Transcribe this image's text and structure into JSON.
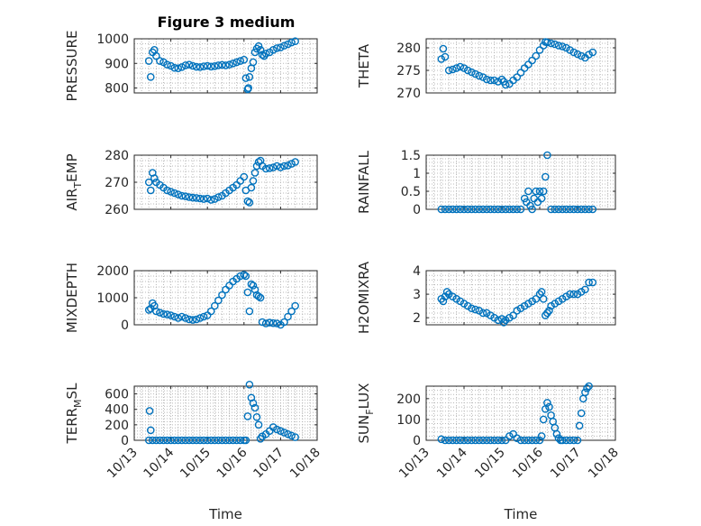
{
  "figure": {
    "title": "Figure 3 medium",
    "marker_color": "#0072BD"
  },
  "chart_data": [
    {
      "type": "scatter",
      "title": "Figure 3 medium",
      "ylabel": "PRESSURE",
      "xlabel": "",
      "xlim": [
        13,
        18
      ],
      "ylim": [
        780,
        1000
      ],
      "yticks": [
        800,
        900,
        1000
      ],
      "xticks": [
        "10/13",
        "10/14",
        "10/15",
        "10/16",
        "10/17",
        "10/18"
      ],
      "show_xticklabels": false,
      "x": [
        13.4,
        13.45,
        13.5,
        13.55,
        13.6,
        13.7,
        13.8,
        13.9,
        14.0,
        14.1,
        14.2,
        14.3,
        14.4,
        14.5,
        14.6,
        14.7,
        14.8,
        14.9,
        15.0,
        15.1,
        15.2,
        15.3,
        15.4,
        15.5,
        15.6,
        15.7,
        15.8,
        15.9,
        16.0,
        16.05,
        16.1,
        16.12,
        16.15,
        16.2,
        16.25,
        16.3,
        16.35,
        16.4,
        16.45,
        16.5,
        16.55,
        16.6,
        16.7,
        16.8,
        16.9,
        17.0,
        17.1,
        17.2,
        17.3,
        17.4
      ],
      "y": [
        910,
        845,
        945,
        955,
        930,
        910,
        905,
        895,
        890,
        882,
        880,
        885,
        892,
        895,
        890,
        886,
        885,
        888,
        890,
        887,
        889,
        892,
        894,
        892,
        895,
        900,
        905,
        910,
        915,
        840,
        795,
        800,
        845,
        880,
        905,
        945,
        960,
        970,
        955,
        935,
        930,
        940,
        945,
        955,
        962,
        965,
        972,
        978,
        985,
        990
      ]
    },
    {
      "type": "scatter",
      "title": "",
      "ylabel": "THETA",
      "xlabel": "",
      "xlim": [
        13,
        18
      ],
      "ylim": [
        270,
        282
      ],
      "yticks": [
        270,
        275,
        280
      ],
      "xticks": [
        "10/13",
        "10/14",
        "10/15",
        "10/16",
        "10/17",
        "10/18"
      ],
      "show_xticklabels": false,
      "x": [
        13.4,
        13.45,
        13.5,
        13.6,
        13.7,
        13.8,
        13.9,
        14.0,
        14.1,
        14.2,
        14.3,
        14.4,
        14.5,
        14.6,
        14.7,
        14.8,
        14.9,
        15.0,
        15.05,
        15.1,
        15.2,
        15.3,
        15.4,
        15.5,
        15.6,
        15.7,
        15.8,
        15.9,
        16.0,
        16.1,
        16.15,
        16.2,
        16.3,
        16.4,
        16.5,
        16.6,
        16.7,
        16.8,
        16.9,
        17.0,
        17.1,
        17.2,
        17.3,
        17.4
      ],
      "y": [
        277.5,
        279.8,
        278,
        275,
        275.2,
        275.5,
        275.8,
        275.5,
        275,
        274.6,
        274.2,
        273.8,
        273.5,
        273,
        272.8,
        272.8,
        272.5,
        273,
        272.5,
        271.8,
        272,
        272.8,
        273.5,
        274.5,
        275.5,
        276.3,
        277.2,
        278.2,
        279.5,
        280.5,
        281.3,
        281.2,
        281,
        280.8,
        280.5,
        280.3,
        280,
        279.5,
        279,
        278.6,
        278.2,
        277.8,
        278.5,
        279
      ]
    },
    {
      "type": "scatter",
      "title": "",
      "ylabel": "AIR_TEMP",
      "ylabel_main": "AIR",
      "ylabel_sub": "T",
      "ylabel_rest": "EMP",
      "xlabel": "",
      "xlim": [
        13,
        18
      ],
      "ylim": [
        260,
        280
      ],
      "yticks": [
        260,
        270,
        280
      ],
      "xticks": [
        "10/13",
        "10/14",
        "10/15",
        "10/16",
        "10/17",
        "10/18"
      ],
      "show_xticklabels": false,
      "x": [
        13.4,
        13.45,
        13.5,
        13.55,
        13.6,
        13.7,
        13.8,
        13.9,
        14.0,
        14.1,
        14.2,
        14.3,
        14.4,
        14.5,
        14.6,
        14.7,
        14.8,
        14.9,
        15.0,
        15.1,
        15.2,
        15.3,
        15.4,
        15.5,
        15.6,
        15.7,
        15.8,
        15.9,
        16.0,
        16.05,
        16.1,
        16.15,
        16.2,
        16.25,
        16.3,
        16.35,
        16.4,
        16.45,
        16.5,
        16.6,
        16.7,
        16.8,
        16.9,
        17.0,
        17.1,
        17.2,
        17.3,
        17.4
      ],
      "y": [
        270,
        267,
        273.5,
        271.5,
        270,
        269,
        268,
        267,
        266.5,
        266,
        265.5,
        265,
        264.8,
        264.5,
        264.3,
        264.2,
        264,
        263.8,
        264,
        263.5,
        263.8,
        264.5,
        265,
        266,
        267,
        268,
        269,
        270.5,
        272,
        267,
        263,
        262.5,
        268,
        270.5,
        273.5,
        276,
        277.5,
        278,
        276,
        275,
        275.2,
        275.5,
        276,
        275.5,
        276,
        276.2,
        276.8,
        277.5
      ]
    },
    {
      "type": "scatter",
      "title": "",
      "ylabel": "RAINFALL",
      "xlabel": "",
      "xlim": [
        13,
        18
      ],
      "ylim": [
        0,
        1.5
      ],
      "yticks": [
        0,
        0.5,
        1,
        1.5
      ],
      "ytick_labels": [
        "0",
        "0.5",
        "1",
        "1.5"
      ],
      "xticks": [
        "10/13",
        "10/14",
        "10/15",
        "10/16",
        "10/17",
        "10/18"
      ],
      "show_xticklabels": false,
      "x": [
        13.4,
        13.5,
        13.6,
        13.7,
        13.8,
        13.9,
        14.0,
        14.1,
        14.2,
        14.3,
        14.4,
        14.5,
        14.6,
        14.7,
        14.8,
        14.9,
        15.0,
        15.1,
        15.2,
        15.3,
        15.4,
        15.5,
        15.6,
        15.65,
        15.7,
        15.75,
        15.8,
        15.85,
        15.9,
        15.95,
        16.0,
        16.05,
        16.1,
        16.15,
        16.2,
        16.3,
        16.4,
        16.5,
        16.6,
        16.7,
        16.8,
        16.9,
        17.0,
        17.1,
        17.2,
        17.3,
        17.4
      ],
      "y": [
        0,
        0,
        0,
        0,
        0,
        0,
        0,
        0,
        0,
        0,
        0,
        0,
        0,
        0,
        0,
        0,
        0,
        0,
        0,
        0,
        0,
        0,
        0.3,
        0.2,
        0.5,
        0.1,
        0,
        0.3,
        0.5,
        0.2,
        0.5,
        0.3,
        0.5,
        0.9,
        1.5,
        0,
        0,
        0,
        0,
        0,
        0,
        0,
        0,
        0,
        0,
        0,
        0
      ]
    },
    {
      "type": "scatter",
      "title": "",
      "ylabel": "MIXDEPTH",
      "xlabel": "",
      "xlim": [
        13,
        18
      ],
      "ylim": [
        0,
        2000
      ],
      "yticks": [
        0,
        1000,
        2000
      ],
      "xticks": [
        "10/13",
        "10/14",
        "10/15",
        "10/16",
        "10/17",
        "10/18"
      ],
      "show_xticklabels": false,
      "x": [
        13.4,
        13.45,
        13.5,
        13.55,
        13.6,
        13.7,
        13.8,
        13.9,
        14.0,
        14.1,
        14.2,
        14.3,
        14.4,
        14.5,
        14.6,
        14.7,
        14.8,
        14.9,
        15.0,
        15.1,
        15.2,
        15.3,
        15.4,
        15.5,
        15.6,
        15.7,
        15.8,
        15.9,
        16.0,
        16.05,
        16.1,
        16.15,
        16.2,
        16.25,
        16.3,
        16.35,
        16.4,
        16.45,
        16.5,
        16.6,
        16.7,
        16.8,
        16.9,
        17.0,
        17.1,
        17.2,
        17.3,
        17.4
      ],
      "y": [
        550,
        600,
        800,
        700,
        500,
        450,
        400,
        380,
        350,
        300,
        250,
        300,
        250,
        200,
        180,
        200,
        250,
        300,
        350,
        500,
        700,
        900,
        1100,
        1300,
        1450,
        1600,
        1700,
        1800,
        1850,
        1800,
        1200,
        500,
        1500,
        1450,
        1300,
        1100,
        1050,
        1000,
        100,
        50,
        80,
        60,
        50,
        0,
        100,
        300,
        500,
        700
      ]
    },
    {
      "type": "scatter",
      "title": "",
      "ylabel": "H2OMIXRA",
      "xlabel": "",
      "xlim": [
        13,
        18
      ],
      "ylim": [
        1.7,
        4
      ],
      "yticks": [
        2,
        3,
        4
      ],
      "xticks": [
        "10/13",
        "10/14",
        "10/15",
        "10/16",
        "10/17",
        "10/18"
      ],
      "show_xticklabels": false,
      "x": [
        13.4,
        13.45,
        13.5,
        13.55,
        13.6,
        13.7,
        13.8,
        13.9,
        14.0,
        14.1,
        14.2,
        14.3,
        14.4,
        14.5,
        14.6,
        14.7,
        14.8,
        14.9,
        15.0,
        15.05,
        15.1,
        15.2,
        15.3,
        15.4,
        15.5,
        15.6,
        15.7,
        15.8,
        15.9,
        16.0,
        16.05,
        16.1,
        16.15,
        16.2,
        16.25,
        16.3,
        16.4,
        16.5,
        16.6,
        16.7,
        16.8,
        16.9,
        17.0,
        17.1,
        17.2,
        17.3,
        17.4
      ],
      "y": [
        2.8,
        2.7,
        2.9,
        3.1,
        3.0,
        2.9,
        2.8,
        2.7,
        2.6,
        2.5,
        2.4,
        2.35,
        2.3,
        2.2,
        2.2,
        2.1,
        2.0,
        1.9,
        1.95,
        1.8,
        1.9,
        2.0,
        2.1,
        2.3,
        2.4,
        2.5,
        2.6,
        2.7,
        2.8,
        3.0,
        3.1,
        2.8,
        2.1,
        2.2,
        2.3,
        2.5,
        2.6,
        2.7,
        2.8,
        2.9,
        3.0,
        3.0,
        3.0,
        3.1,
        3.2,
        3.5,
        3.5
      ]
    },
    {
      "type": "scatter",
      "title": "",
      "ylabel": "TERR_MSL",
      "ylabel_main": "TERR",
      "ylabel_sub": "M",
      "ylabel_rest": "SL",
      "xlabel": "Time",
      "xlim": [
        13,
        18
      ],
      "ylim": [
        0,
        700
      ],
      "yticks": [
        0,
        200,
        400,
        600
      ],
      "xticks": [
        "10/13",
        "10/14",
        "10/15",
        "10/16",
        "10/17",
        "10/18"
      ],
      "show_xticklabels": true,
      "x": [
        13.4,
        13.42,
        13.45,
        13.5,
        13.6,
        13.7,
        13.8,
        13.9,
        14.0,
        14.1,
        14.2,
        14.3,
        14.4,
        14.5,
        14.6,
        14.7,
        14.8,
        14.9,
        15.0,
        15.1,
        15.2,
        15.3,
        15.4,
        15.5,
        15.6,
        15.7,
        15.8,
        15.9,
        16.0,
        16.05,
        16.1,
        16.15,
        16.2,
        16.25,
        16.3,
        16.35,
        16.4,
        16.45,
        16.5,
        16.6,
        16.7,
        16.8,
        16.9,
        17.0,
        17.1,
        17.2,
        17.3,
        17.4
      ],
      "y": [
        0,
        380,
        130,
        0,
        0,
        0,
        0,
        0,
        0,
        0,
        0,
        0,
        0,
        0,
        0,
        0,
        0,
        0,
        0,
        0,
        0,
        0,
        0,
        0,
        0,
        0,
        0,
        0,
        0,
        0,
        310,
        720,
        550,
        480,
        420,
        300,
        200,
        20,
        50,
        80,
        120,
        170,
        140,
        120,
        100,
        80,
        60,
        40
      ]
    },
    {
      "type": "scatter",
      "title": "",
      "ylabel": "SUN_FLUX",
      "ylabel_main": "SUN",
      "ylabel_sub": "F",
      "ylabel_rest": "LUX",
      "xlabel": "Time",
      "xlim": [
        13,
        18
      ],
      "ylim": [
        0,
        260
      ],
      "yticks": [
        0,
        100,
        200
      ],
      "xticks": [
        "10/13",
        "10/14",
        "10/15",
        "10/16",
        "10/17",
        "10/18"
      ],
      "show_xticklabels": true,
      "x": [
        13.4,
        13.5,
        13.6,
        13.7,
        13.8,
        13.9,
        14.0,
        14.1,
        14.2,
        14.3,
        14.4,
        14.5,
        14.6,
        14.7,
        14.8,
        14.9,
        15.0,
        15.1,
        15.2,
        15.3,
        15.4,
        15.5,
        15.6,
        15.7,
        15.8,
        15.9,
        16.0,
        16.05,
        16.1,
        16.15,
        16.2,
        16.25,
        16.3,
        16.35,
        16.4,
        16.45,
        16.5,
        16.55,
        16.6,
        16.7,
        16.8,
        16.9,
        17.0,
        17.05,
        17.1,
        17.15,
        17.2,
        17.25,
        17.3
      ],
      "y": [
        5,
        0,
        0,
        0,
        0,
        0,
        0,
        0,
        0,
        0,
        0,
        0,
        0,
        0,
        0,
        0,
        0,
        0,
        20,
        30,
        10,
        0,
        0,
        0,
        0,
        0,
        0,
        20,
        100,
        150,
        180,
        160,
        120,
        90,
        60,
        30,
        10,
        0,
        0,
        0,
        0,
        0,
        0,
        70,
        130,
        200,
        230,
        250,
        260
      ]
    }
  ]
}
